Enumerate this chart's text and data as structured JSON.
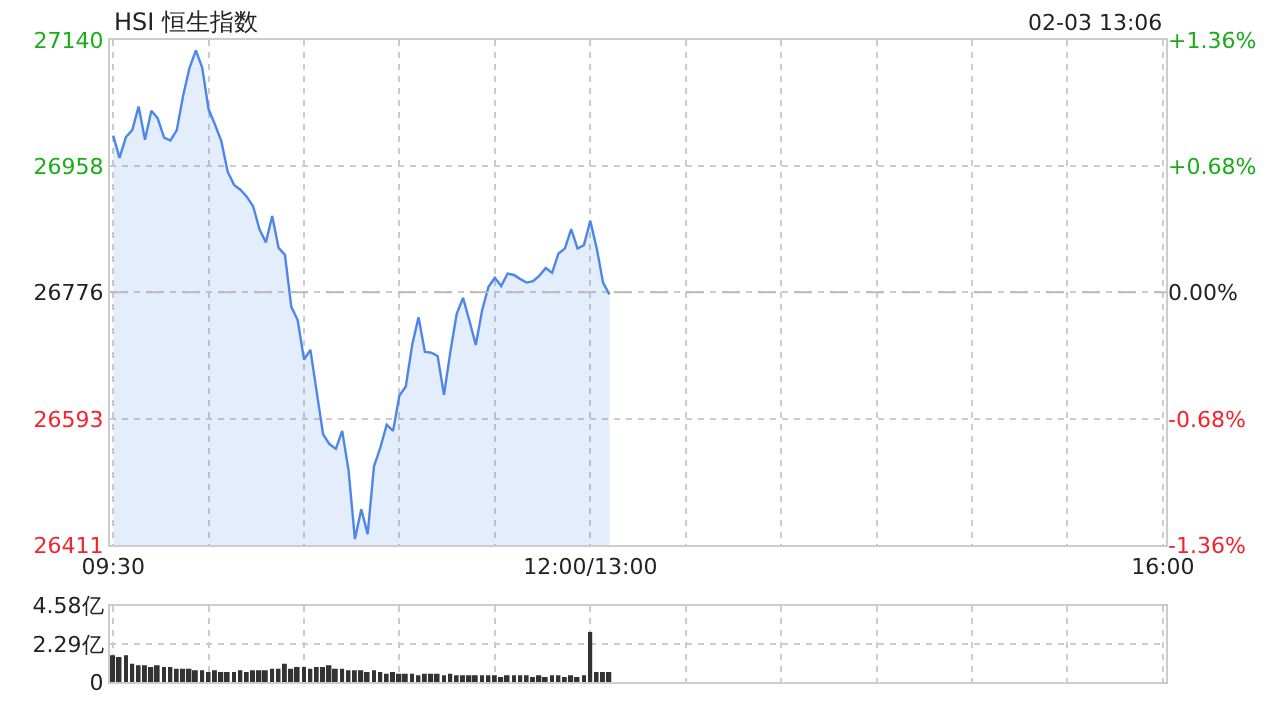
{
  "chart_data": [
    {
      "type": "area",
      "title": "HSI 恒生指数",
      "annotations": [
        "02-03 13:06"
      ],
      "categories": [
        "09:30",
        null,
        null,
        null,
        null,
        null,
        null,
        null,
        null,
        null,
        null,
        null,
        null,
        null,
        null,
        null,
        null,
        null,
        null,
        null,
        null,
        null,
        null,
        null,
        null,
        null,
        null,
        null,
        null,
        null,
        null,
        null,
        null,
        null,
        null,
        null,
        null,
        null,
        null,
        null,
        null,
        null,
        null,
        null,
        null,
        null,
        null,
        null,
        null,
        null,
        null,
        null,
        null,
        null,
        null,
        null,
        null,
        null,
        null,
        null,
        null,
        null,
        null,
        null,
        null,
        null,
        null,
        null,
        null,
        null,
        null,
        null,
        null,
        null,
        null,
        "12:00/13:00",
        null,
        null,
        null,
        null,
        null,
        null,
        null,
        null,
        null,
        null,
        null,
        null,
        null,
        null,
        null,
        null,
        null,
        null,
        null,
        null,
        null,
        null,
        null,
        null,
        null,
        null,
        null,
        null,
        null,
        null,
        null,
        null,
        null,
        null,
        null,
        null,
        null,
        null,
        null,
        null,
        null,
        null,
        null,
        null,
        null,
        null,
        null,
        null,
        null,
        null,
        null,
        null,
        null,
        null,
        null,
        null,
        null,
        null,
        null,
        null,
        null,
        null,
        null,
        null,
        null,
        null,
        null,
        null,
        null,
        null,
        null,
        null,
        null,
        null,
        null,
        null,
        null,
        null,
        null,
        null,
        null,
        null,
        null,
        null,
        null,
        null,
        null,
        null,
        null,
        "16:00"
      ],
      "series": [
        {
          "color": "#4d86ea",
          "values": [
            27002,
            26970,
            27000,
            27010,
            27044,
            26996,
            27038,
            27027,
            26999,
            26995,
            27010,
            27060,
            27100,
            27125,
            27100,
            27040,
            27018,
            26994,
            26950,
            26931,
            26924,
            26914,
            26900,
            26867,
            26848,
            26886,
            26840,
            26830,
            26755,
            26736,
            26679,
            26693,
            26632,
            26571,
            26557,
            26550,
            26576,
            26519,
            26420,
            26463,
            26427,
            26525,
            26552,
            26585,
            26576,
            26627,
            26640,
            26700,
            26740,
            26690,
            26689,
            26684,
            26628,
            26690,
            26745,
            26768,
            26735,
            26700,
            26750,
            26784,
            26797,
            26785,
            26803,
            26801,
            26795,
            26790,
            26792,
            26800,
            26811,
            26804,
            26832,
            26839,
            26867,
            26839,
            26844,
            26879,
            26840,
            26790,
            26773,
            null,
            null,
            null,
            null,
            null,
            null,
            null,
            null,
            null,
            null,
            null,
            null,
            null,
            null,
            null,
            null,
            null,
            null,
            null,
            null,
            null,
            null,
            null,
            null,
            null,
            null,
            null,
            null,
            null,
            null,
            null,
            null,
            null,
            null,
            null,
            null,
            null,
            null,
            null,
            null,
            null,
            null,
            null,
            null,
            null,
            null,
            null,
            null,
            null,
            null,
            null,
            null,
            null,
            null,
            null,
            null,
            null,
            null,
            null,
            null,
            null,
            null,
            null,
            null,
            null,
            null,
            null,
            null,
            null,
            null,
            null,
            null,
            null,
            null,
            null,
            null,
            null,
            null,
            null,
            null,
            null,
            null,
            null,
            null,
            null,
            null,
            null
          ]
        }
      ],
      "ylim": [
        26411,
        27140
      ],
      "yticks": [
        26411,
        26593,
        26776,
        26958,
        27140
      ],
      "y2lim": [
        -1.36,
        1.36
      ],
      "y2ticks": [
        {
          "value": -1.36,
          "label": "-1.36%"
        },
        {
          "value": -0.68,
          "label": "-0.68%"
        },
        {
          "value": 0,
          "label": "0.00%"
        },
        {
          "value": 0.68,
          "label": "+0.68%"
        },
        {
          "value": 1.36,
          "label": "+1.36%"
        }
      ],
      "ref_lines": [
        {
          "axis": "y",
          "value": 26776,
          "line_style": "dashed",
          "color": "#bbbbbb"
        }
      ],
      "grid": true,
      "line_style": "solid",
      "marker": "none"
    },
    {
      "type": "bar",
      "categories": [
        null,
        null,
        null,
        null,
        null,
        null,
        null,
        null,
        null,
        null,
        null,
        null,
        null,
        null,
        null,
        null,
        null,
        null,
        null,
        null,
        null,
        null,
        null,
        null,
        null,
        null,
        null,
        null,
        null,
        null,
        null,
        null,
        null,
        null,
        null,
        null,
        null,
        null,
        null,
        null,
        null,
        null,
        null,
        null,
        null,
        null,
        null,
        null,
        null,
        null,
        null,
        null,
        null,
        null,
        null,
        null,
        null,
        null,
        null,
        null,
        null,
        null,
        null,
        null,
        null,
        null,
        null,
        null,
        null,
        null,
        null,
        null,
        null,
        null,
        null,
        null,
        null,
        null,
        null,
        null,
        null,
        null,
        null,
        null,
        null,
        null,
        null,
        null,
        null,
        null,
        null,
        null,
        null,
        null,
        null,
        null,
        null,
        null,
        null,
        null,
        null,
        null,
        null,
        null,
        null,
        null,
        null,
        null,
        null,
        null,
        null,
        null,
        null,
        null,
        null,
        null,
        null,
        null,
        null,
        null,
        null,
        null,
        null,
        null,
        null,
        null,
        null,
        null,
        null,
        null,
        null,
        null,
        null,
        null,
        null,
        null,
        null,
        null,
        null,
        null,
        null,
        null,
        null,
        null,
        null,
        null,
        null,
        null,
        null,
        null,
        null,
        null,
        null,
        null,
        null,
        null,
        null,
        null,
        null,
        null,
        null,
        null,
        null,
        null,
        null,
        null
      ],
      "series": [
        {
          "color": "#333333",
          "values": [
            1.6,
            1.5,
            1.6,
            1.1,
            1.0,
            1.0,
            0.9,
            1.0,
            0.9,
            0.9,
            0.8,
            0.8,
            0.8,
            0.7,
            0.7,
            0.6,
            0.7,
            0.6,
            0.6,
            0.6,
            0.7,
            0.6,
            0.7,
            0.7,
            0.7,
            0.8,
            0.8,
            1.1,
            0.8,
            0.9,
            0.9,
            0.8,
            0.9,
            0.9,
            1.0,
            0.8,
            0.8,
            0.7,
            0.7,
            0.7,
            0.6,
            0.7,
            0.6,
            0.5,
            0.6,
            0.5,
            0.5,
            0.5,
            0.4,
            0.5,
            0.5,
            0.5,
            0.4,
            0.5,
            0.4,
            0.4,
            0.4,
            0.4,
            0.4,
            0.4,
            0.4,
            0.3,
            0.4,
            0.4,
            0.4,
            0.4,
            0.3,
            0.4,
            0.3,
            0.4,
            0.4,
            0.3,
            0.4,
            0.3,
            0.4,
            3.0,
            0.6,
            0.6,
            0.6,
            null,
            null,
            null,
            null,
            null,
            null,
            null,
            null,
            null,
            null,
            null,
            null,
            null,
            null,
            null,
            null,
            null,
            null,
            null,
            null,
            null,
            null,
            null,
            null,
            null,
            null,
            null,
            null,
            null,
            null,
            null,
            null,
            null,
            null,
            null,
            null,
            null,
            null,
            null,
            null,
            null,
            null,
            null,
            null,
            null,
            null,
            null,
            null,
            null,
            null,
            null,
            null,
            null,
            null,
            null,
            null,
            null,
            null,
            null,
            null,
            null,
            null,
            null,
            null,
            null,
            null,
            null,
            null,
            null,
            null,
            null,
            null,
            null,
            null,
            null,
            null,
            null,
            null,
            null,
            null,
            null,
            null,
            null,
            null,
            null,
            null,
            null
          ]
        }
      ],
      "ylim": [
        0,
        4.58
      ],
      "yticks": [
        0,
        {
          "value": 2.29,
          "label": "2.29亿"
        },
        {
          "value": 4.58,
          "label": "4.58亿"
        }
      ],
      "tick_labels": "y",
      "grid": true
    }
  ]
}
